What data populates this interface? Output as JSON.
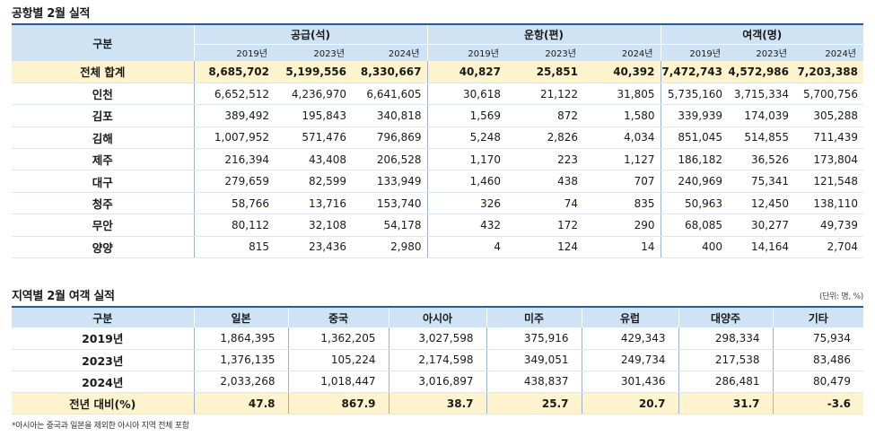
{
  "airport_section": {
    "title": "공항별 2월 실적",
    "header": {
      "gubun": "구분",
      "groups": [
        "공급(석)",
        "운항(편)",
        "여객(명)"
      ],
      "years": [
        "2019년",
        "2023년",
        "2024년"
      ]
    },
    "rows": [
      {
        "name": "전체 합계",
        "values": [
          "8,685,702",
          "5,199,556",
          "8,330,667",
          "40,827",
          "25,851",
          "40,392",
          "7,472,743",
          "4,572,986",
          "7,203,388"
        ]
      },
      {
        "name": "인천",
        "values": [
          "6,652,512",
          "4,236,970",
          "6,641,605",
          "30,618",
          "21,122",
          "31,805",
          "5,735,160",
          "3,715,334",
          "5,700,756"
        ]
      },
      {
        "name": "김포",
        "values": [
          "389,492",
          "195,843",
          "340,818",
          "1,569",
          "872",
          "1,580",
          "339,939",
          "174,039",
          "305,288"
        ]
      },
      {
        "name": "김해",
        "values": [
          "1,007,952",
          "571,476",
          "796,869",
          "5,248",
          "2,826",
          "4,034",
          "851,045",
          "514,855",
          "711,439"
        ]
      },
      {
        "name": "제주",
        "values": [
          "216,394",
          "43,408",
          "206,528",
          "1,170",
          "223",
          "1,127",
          "186,182",
          "36,526",
          "173,804"
        ]
      },
      {
        "name": "대구",
        "values": [
          "279,659",
          "82,599",
          "133,949",
          "1,460",
          "438",
          "707",
          "240,969",
          "75,341",
          "121,548"
        ]
      },
      {
        "name": "청주",
        "values": [
          "58,766",
          "13,716",
          "153,740",
          "326",
          "74",
          "835",
          "50,963",
          "12,450",
          "138,110"
        ]
      },
      {
        "name": "무안",
        "values": [
          "80,112",
          "32,108",
          "54,178",
          "432",
          "172",
          "290",
          "68,085",
          "30,277",
          "49,739"
        ]
      },
      {
        "name": "양양",
        "values": [
          "815",
          "23,436",
          "2,980",
          "4",
          "124",
          "14",
          "400",
          "14,164",
          "2,704"
        ]
      }
    ]
  },
  "region_section": {
    "title": "지역별 2월 여객 실적",
    "unit_note": "(단위: 명, %)",
    "header": [
      "구분",
      "일본",
      "중국",
      "아시아",
      "미주",
      "유럽",
      "대양주",
      "기타"
    ],
    "rows": [
      {
        "name": "2019년",
        "values": [
          "1,864,395",
          "1,362,205",
          "3,027,598",
          "375,916",
          "429,343",
          "298,334",
          "75,934"
        ]
      },
      {
        "name": "2023년",
        "values": [
          "1,376,135",
          "105,224",
          "2,174,598",
          "349,051",
          "249,734",
          "217,538",
          "83,486"
        ]
      },
      {
        "name": "2024년",
        "values": [
          "2,033,268",
          "1,018,447",
          "3,016,897",
          "438,837",
          "301,436",
          "286,481",
          "80,479"
        ]
      },
      {
        "name": "전년 대비(%)",
        "values": [
          "47.8",
          "867.9",
          "38.7",
          "25.7",
          "20.7",
          "31.7",
          "-3.6"
        ]
      }
    ],
    "footnote": "*아시아는 중국과 일본을 제외한 아시아 지역 전체 포함"
  },
  "colors": {
    "header_bg": "#cfe3f5",
    "highlight_row_bg": "#fdf3cd",
    "rule": "#1f5fa0"
  }
}
